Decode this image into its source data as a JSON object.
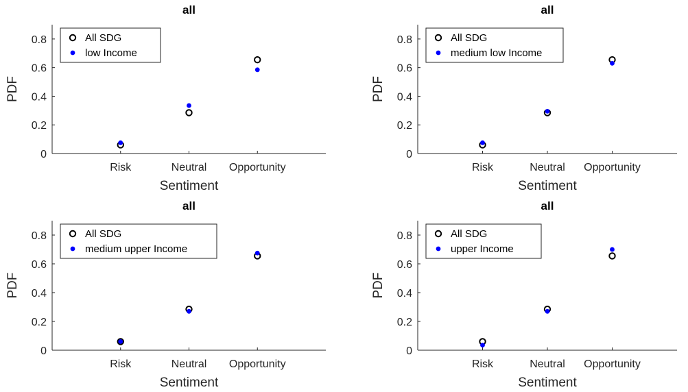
{
  "chart_data": [
    {
      "type": "scatter",
      "title": "all",
      "xlabel": "Sentiment",
      "ylabel": "PDF",
      "categories": [
        "Risk",
        "Neutral",
        "Opportunity"
      ],
      "ylim": [
        0,
        0.9
      ],
      "yticks": [
        "0",
        "0.2",
        "0.4",
        "0.6",
        "0.8"
      ],
      "legend_position": "top-left",
      "series": [
        {
          "name": "All SDG",
          "marker": "open-circle",
          "color": "#000000",
          "values": [
            0.06,
            0.285,
            0.655
          ]
        },
        {
          "name": "low Income",
          "marker": "filled-dot",
          "color": "#0000ff",
          "values": [
            0.075,
            0.335,
            0.585
          ]
        }
      ]
    },
    {
      "type": "scatter",
      "title": "all",
      "xlabel": "Sentiment",
      "ylabel": "PDF",
      "categories": [
        "Risk",
        "Neutral",
        "Opportunity"
      ],
      "ylim": [
        0,
        0.9
      ],
      "yticks": [
        "0",
        "0.2",
        "0.4",
        "0.6",
        "0.8"
      ],
      "legend_position": "top-left",
      "series": [
        {
          "name": "All SDG",
          "marker": "open-circle",
          "color": "#000000",
          "values": [
            0.06,
            0.285,
            0.655
          ]
        },
        {
          "name": "medium low Income",
          "marker": "filled-dot",
          "color": "#0000ff",
          "values": [
            0.075,
            0.295,
            0.63
          ]
        }
      ]
    },
    {
      "type": "scatter",
      "title": "all",
      "xlabel": "Sentiment",
      "ylabel": "PDF",
      "categories": [
        "Risk",
        "Neutral",
        "Opportunity"
      ],
      "ylim": [
        0,
        0.9
      ],
      "yticks": [
        "0",
        "0.2",
        "0.4",
        "0.6",
        "0.8"
      ],
      "legend_position": "top-left",
      "series": [
        {
          "name": "All SDG",
          "marker": "open-circle",
          "color": "#000000",
          "values": [
            0.06,
            0.285,
            0.655
          ]
        },
        {
          "name": "medium upper Income",
          "marker": "filled-dot",
          "color": "#0000ff",
          "values": [
            0.06,
            0.27,
            0.675
          ]
        }
      ]
    },
    {
      "type": "scatter",
      "title": "all",
      "xlabel": "Sentiment",
      "ylabel": "PDF",
      "categories": [
        "Risk",
        "Neutral",
        "Opportunity"
      ],
      "ylim": [
        0,
        0.9
      ],
      "yticks": [
        "0",
        "0.2",
        "0.4",
        "0.6",
        "0.8"
      ],
      "legend_position": "top-left",
      "series": [
        {
          "name": "All SDG",
          "marker": "open-circle",
          "color": "#000000",
          "values": [
            0.06,
            0.285,
            0.655
          ]
        },
        {
          "name": "upper Income",
          "marker": "filled-dot",
          "color": "#0000ff",
          "values": [
            0.035,
            0.27,
            0.7
          ]
        }
      ]
    }
  ]
}
